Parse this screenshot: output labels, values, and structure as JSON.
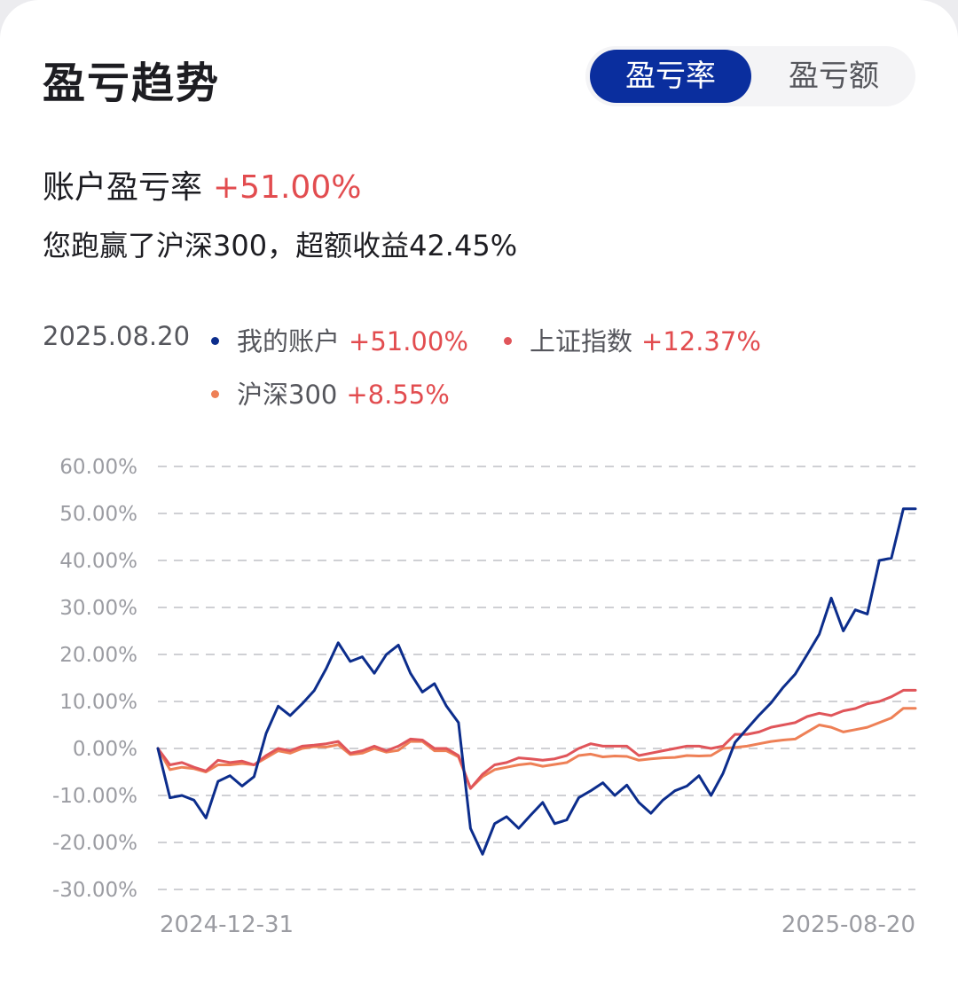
{
  "header": {
    "title": "盈亏趋势",
    "tabs": [
      {
        "label": "盈亏率",
        "active": true
      },
      {
        "label": "盈亏额",
        "active": false
      }
    ]
  },
  "summary": {
    "rate_label": "账户盈亏率",
    "rate_value": "+51.00%",
    "beat_text": "您跑赢了沪深300，超额收益42.45%"
  },
  "legend": {
    "date": "2025.08.20",
    "items": [
      {
        "name": "我的账户",
        "value": "+51.00%",
        "color": "#0c2d8c"
      },
      {
        "name": "上证指数",
        "value": "+12.37%",
        "color": "#e0555a"
      },
      {
        "name": "沪深300",
        "value": "+8.55%",
        "color": "#ee8056"
      }
    ]
  },
  "colors": {
    "accent": "#0a2e9e",
    "positive": "#e24c4f"
  },
  "chart_data": {
    "type": "line",
    "x_start": "2024-12-31",
    "x_end": "2025-08-20",
    "x_tick_labels": [
      "2024-12-31",
      "2025-08-20"
    ],
    "ylim": [
      -30,
      60
    ],
    "y_ticks": [
      "60.00%",
      "50.00%",
      "40.00%",
      "30.00%",
      "20.00%",
      "10.00%",
      "0.00%",
      "-10.00%",
      "-20.00%",
      "-30.00%"
    ],
    "grid": true,
    "series": [
      {
        "name": "我的账户",
        "color": "#0c2d8c",
        "values": [
          0,
          -10.5,
          -10,
          -11,
          -14.8,
          -7,
          -5.8,
          -8,
          -6,
          3.2,
          9,
          7,
          9.5,
          12.3,
          17,
          22.5,
          18.5,
          19.5,
          16,
          20,
          22,
          16,
          12,
          13.8,
          9,
          5.5,
          -17,
          -22.5,
          -16,
          -14.5,
          -17,
          -14.2,
          -11.5,
          -16,
          -15.2,
          -10.5,
          -9,
          -7.3,
          -10,
          -7.8,
          -11.5,
          -13.8,
          -11,
          -9,
          -8,
          -5.8,
          -10,
          -5.3,
          1.3,
          4.2,
          7.1,
          9.7,
          13,
          15.8,
          20,
          24.3,
          32,
          25,
          29.5,
          28.6,
          40,
          40.5,
          51,
          51
        ]
      },
      {
        "name": "上证指数",
        "color": "#e0555a",
        "values": [
          0,
          -3.5,
          -3,
          -4,
          -4.8,
          -2.5,
          -3,
          -2.7,
          -3.5,
          -1.5,
          0,
          -0.5,
          0.5,
          0.7,
          1,
          1.5,
          -1,
          -0.5,
          0.5,
          -0.5,
          0.5,
          2,
          1.8,
          0,
          0,
          -1.5,
          -8.5,
          -5.5,
          -3.5,
          -3,
          -2,
          -2.2,
          -2.5,
          -2.2,
          -1.5,
          0,
          1,
          0.5,
          0.5,
          0.5,
          -1.5,
          -1,
          -0.5,
          0,
          0.5,
          0.5,
          0,
          0.5,
          3,
          3,
          3.5,
          4.5,
          5,
          5.5,
          6.8,
          7.5,
          7,
          8,
          8.5,
          9.5,
          10,
          11,
          12.37,
          12.37
        ]
      },
      {
        "name": "沪深300",
        "color": "#ee8056",
        "values": [
          0,
          -4.5,
          -4,
          -4.3,
          -5,
          -3.5,
          -3.5,
          -3.2,
          -3.5,
          -2,
          -0.5,
          -1,
          0,
          0.4,
          0.3,
          0.8,
          -1.3,
          -1,
          0,
          -0.8,
          -0.4,
          1.5,
          1.5,
          -0.5,
          -0.5,
          -1.8,
          -8.5,
          -6,
          -4.5,
          -4,
          -3.5,
          -3.2,
          -3.8,
          -3.4,
          -3,
          -1.5,
          -1.2,
          -1.8,
          -1.6,
          -1.7,
          -2.5,
          -2.2,
          -2,
          -1.9,
          -1.5,
          -1.6,
          -1.5,
          0,
          0.2,
          0.5,
          1,
          1.5,
          1.8,
          2,
          3.5,
          5,
          4.5,
          3.5,
          4,
          4.5,
          5.5,
          6.5,
          8.55,
          8.55
        ]
      }
    ]
  }
}
